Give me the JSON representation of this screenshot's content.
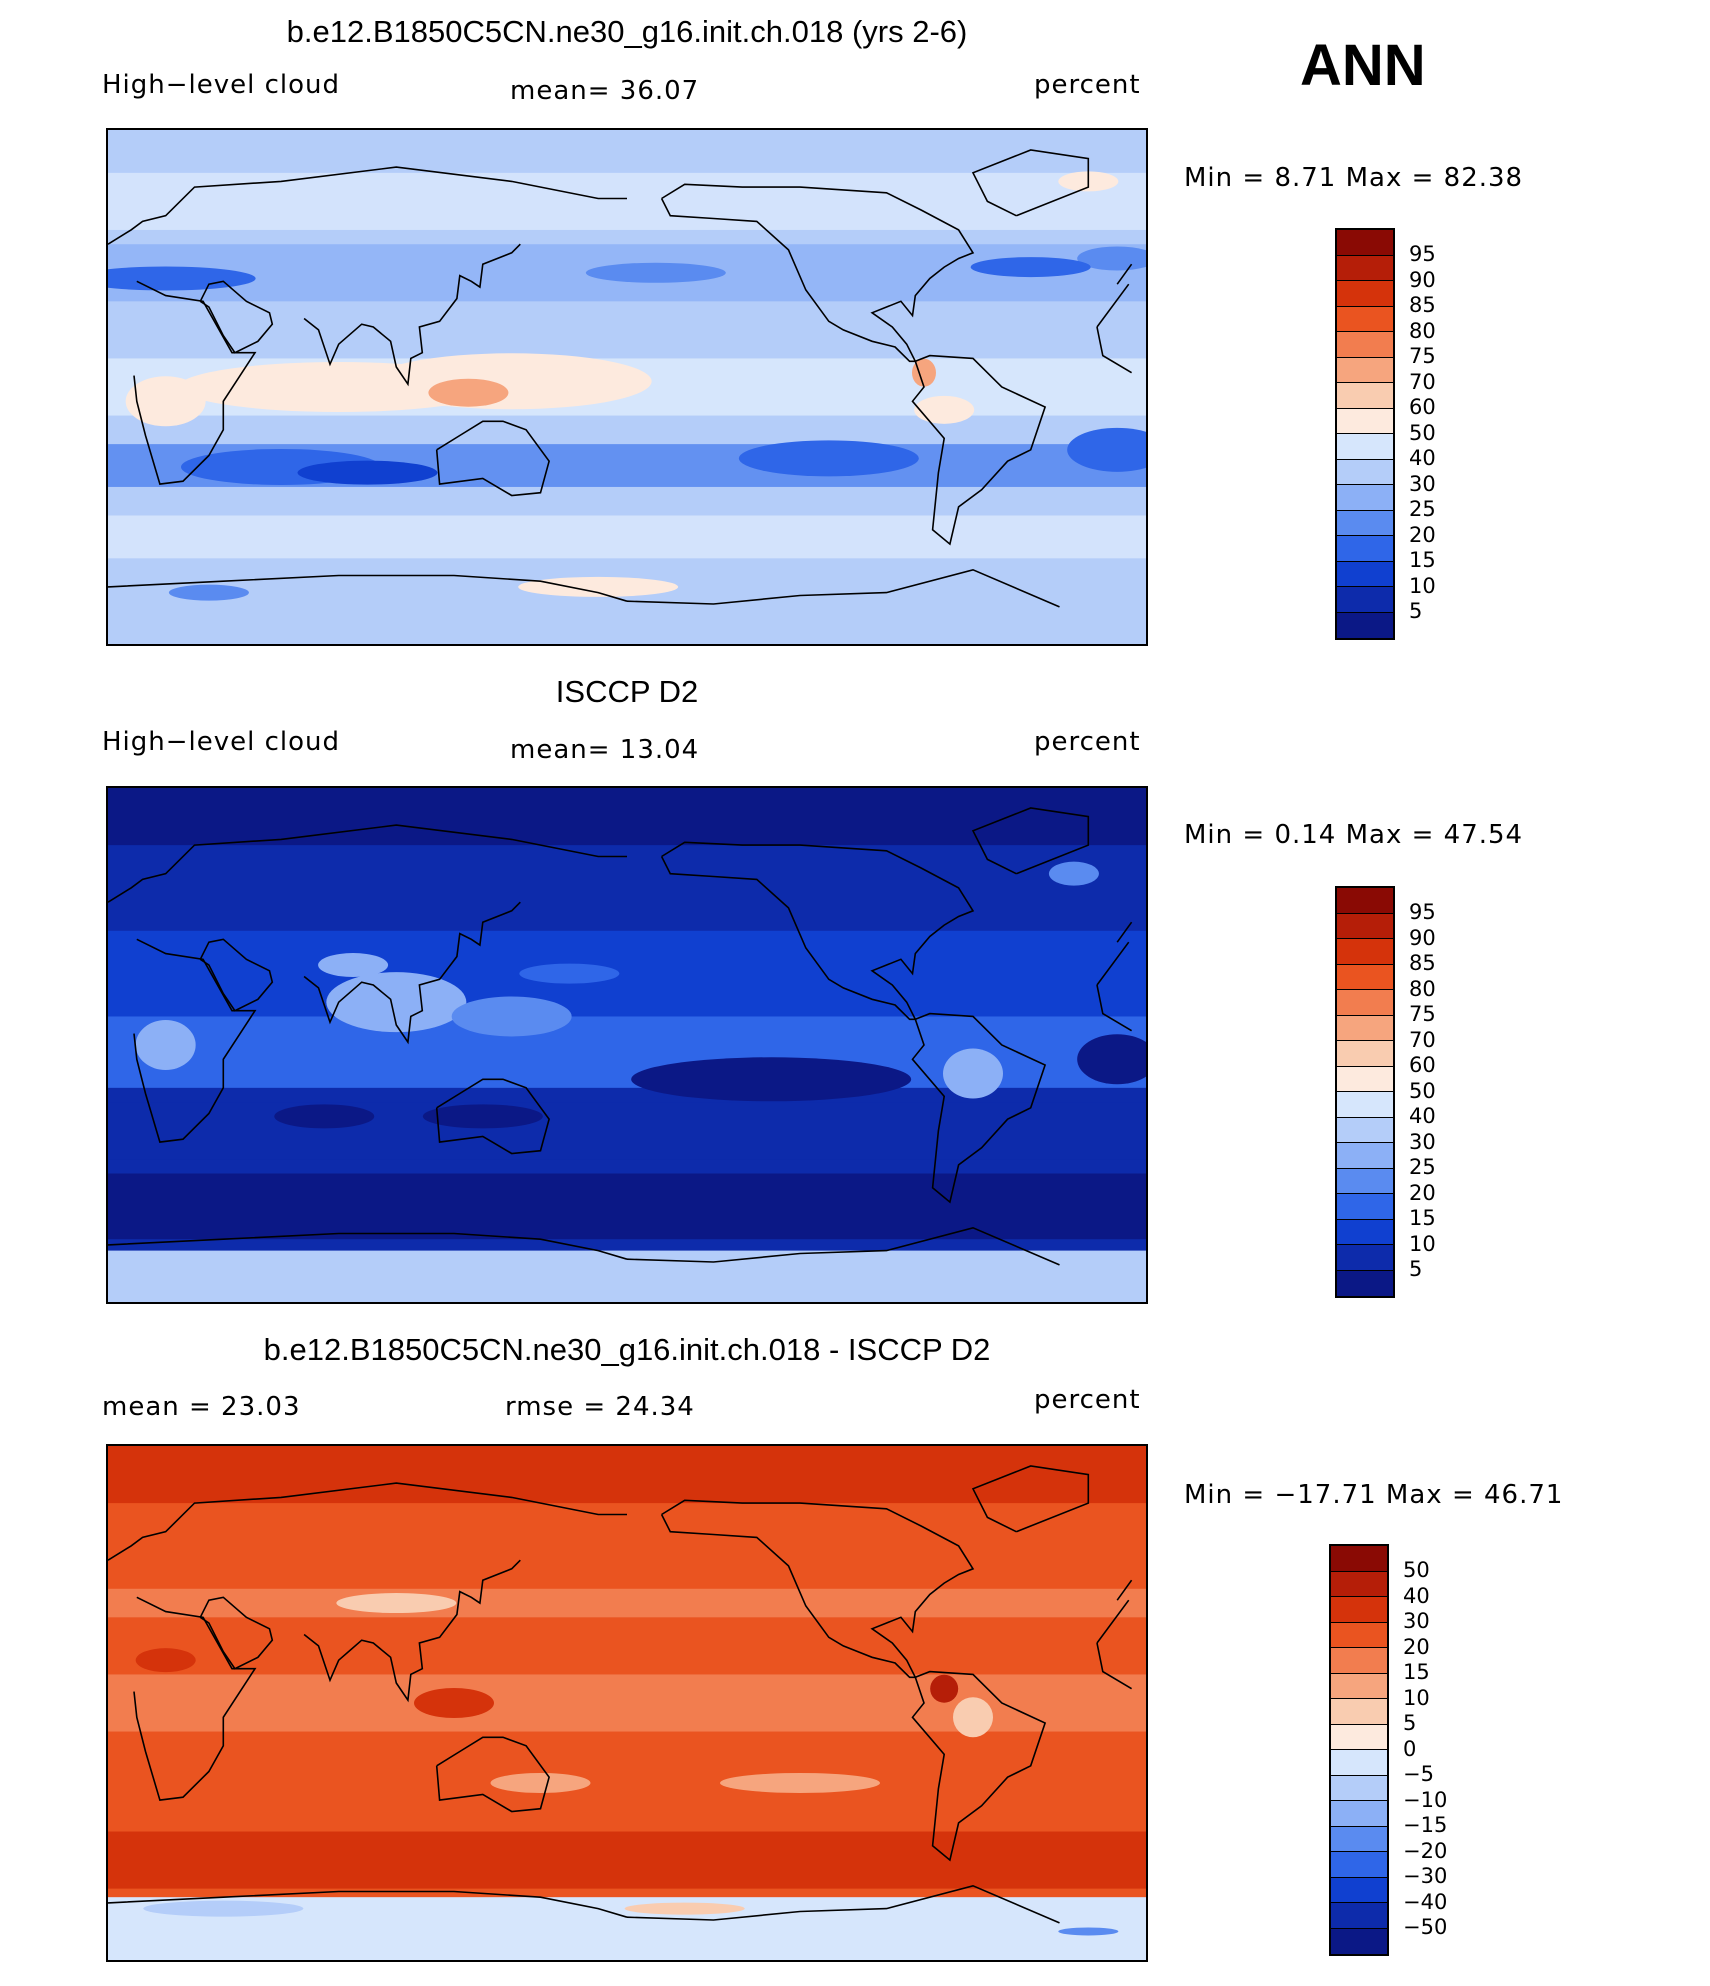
{
  "season": "ANN",
  "colors": {
    "scale_abs": [
      "#0b1886",
      "#0d2bab",
      "#1040d0",
      "#2f66e8",
      "#5a8bf0",
      "#8cb0f6",
      "#b4cdf9",
      "#d6e6fc",
      "#fdeade",
      "#f9ccb0",
      "#f6a57e",
      "#f27d4f",
      "#ea5420",
      "#d5330b",
      "#b51e08",
      "#8a0a04"
    ],
    "scale_diff": [
      "#0b1886",
      "#0d2bab",
      "#1040d0",
      "#2f66e8",
      "#5a8bf0",
      "#8cb0f6",
      "#b4cdf9",
      "#d6e6fc",
      "#fdeade",
      "#f9ccb0",
      "#f6a57e",
      "#f27d4f",
      "#ea5420",
      "#d5330b",
      "#b51e08",
      "#8a0a04"
    ]
  },
  "panels": [
    {
      "title": "b.e12.B1850C5CN.ne30_g16.init.ch.018 (yrs 2-6)",
      "left_label": "High−level cloud",
      "center_label": "mean=   36.07",
      "right_label": "percent",
      "minmax": "Min  =    8.71  Max  =    82.38",
      "colorbar_ticks": [
        "95",
        "90",
        "85",
        "80",
        "75",
        "70",
        "60",
        "50",
        "40",
        "30",
        "25",
        "20",
        "15",
        "10",
        "5"
      ],
      "field": "model"
    },
    {
      "title": "ISCCP D2",
      "left_label": "High−level cloud",
      "center_label": "mean=   13.04",
      "right_label": "percent",
      "minmax": "Min  =    0.14  Max  =    47.54",
      "colorbar_ticks": [
        "95",
        "90",
        "85",
        "80",
        "75",
        "70",
        "60",
        "50",
        "40",
        "30",
        "25",
        "20",
        "15",
        "10",
        "5"
      ],
      "field": "obs"
    },
    {
      "title": "b.e12.B1850C5CN.ne30_g16.init.ch.018 - ISCCP D2",
      "left_label": "mean  =    23.03",
      "center_label": "rmse  =    24.34",
      "right_label": "percent",
      "minmax": "Min  = −17.71  Max  =    46.71",
      "colorbar_ticks": [
        "50",
        "40",
        "30",
        "20",
        "15",
        "10",
        "5",
        "0",
        "−5",
        "−10",
        "−15",
        "−20",
        "−30",
        "−40",
        "−50"
      ],
      "field": "diff"
    }
  ]
}
